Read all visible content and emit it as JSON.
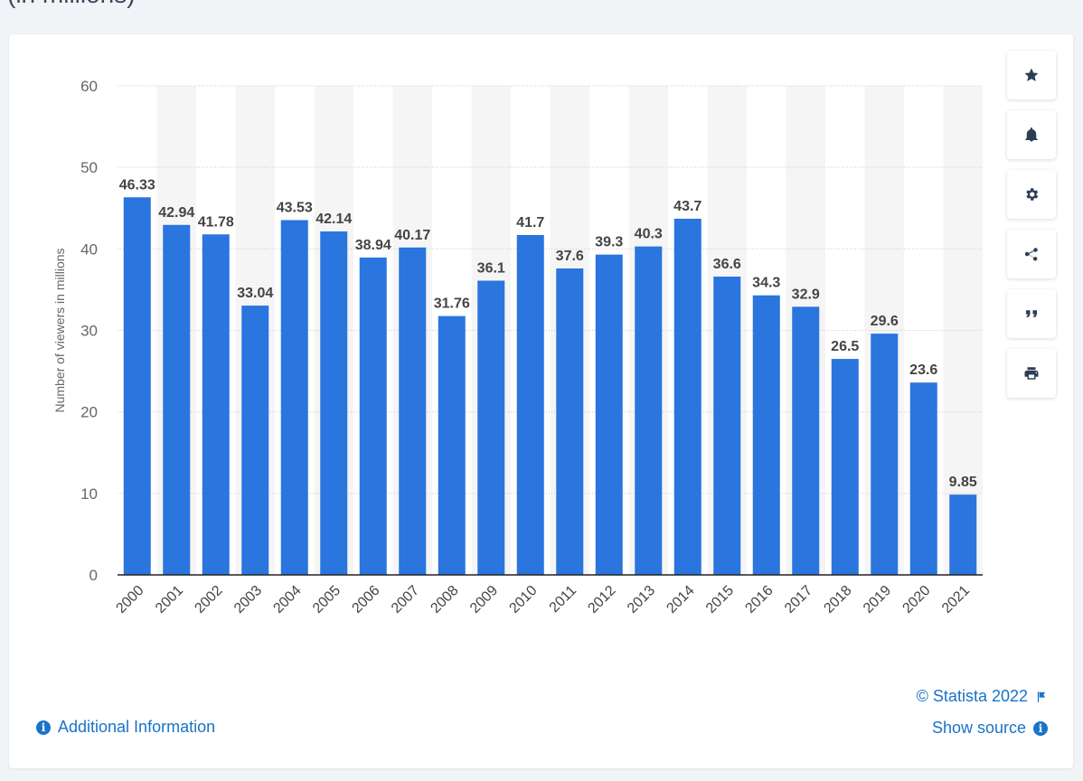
{
  "page": {
    "heading": "(in millions)"
  },
  "toolbar": {
    "buttons": [
      {
        "name": "favorite-button",
        "icon": "star-icon"
      },
      {
        "name": "notification-button",
        "icon": "bell-icon"
      },
      {
        "name": "settings-button",
        "icon": "gear-icon"
      },
      {
        "name": "share-button",
        "icon": "share-icon"
      },
      {
        "name": "cite-button",
        "icon": "quote-icon"
      },
      {
        "name": "print-button",
        "icon": "print-icon"
      }
    ]
  },
  "footer": {
    "additional_info": "Additional Information",
    "credit": "© Statista 2022",
    "show_source": "Show source"
  },
  "colors": {
    "bar": "#2a75de",
    "accent": "#1a73c8",
    "stripe": "#f5f5f5"
  },
  "chart_data": {
    "type": "bar",
    "title": "",
    "xlabel": "",
    "ylabel": "Number of viewers in millions",
    "ylim": [
      0,
      60
    ],
    "yticks": [
      0,
      10,
      20,
      30,
      40,
      50,
      60
    ],
    "categories": [
      "2000",
      "2001",
      "2002",
      "2003",
      "2004",
      "2005",
      "2006",
      "2007",
      "2008",
      "2009",
      "2010",
      "2011",
      "2012",
      "2013",
      "2014",
      "2015",
      "2016",
      "2017",
      "2018",
      "2019",
      "2020",
      "2021"
    ],
    "values": [
      46.33,
      42.94,
      41.78,
      33.04,
      43.53,
      42.14,
      38.94,
      40.17,
      31.76,
      36.1,
      41.7,
      37.6,
      39.3,
      40.3,
      43.7,
      36.6,
      34.3,
      32.9,
      26.5,
      29.6,
      23.6,
      9.85
    ],
    "value_labels": [
      "46.33",
      "42.94",
      "41.78",
      "33.04",
      "43.53",
      "42.14",
      "38.94",
      "40.17",
      "31.76",
      "36.1",
      "41.7",
      "37.6",
      "39.3",
      "40.3",
      "43.7",
      "36.6",
      "34.3",
      "32.9",
      "26.5",
      "29.6",
      "23.6",
      "9.85"
    ]
  }
}
